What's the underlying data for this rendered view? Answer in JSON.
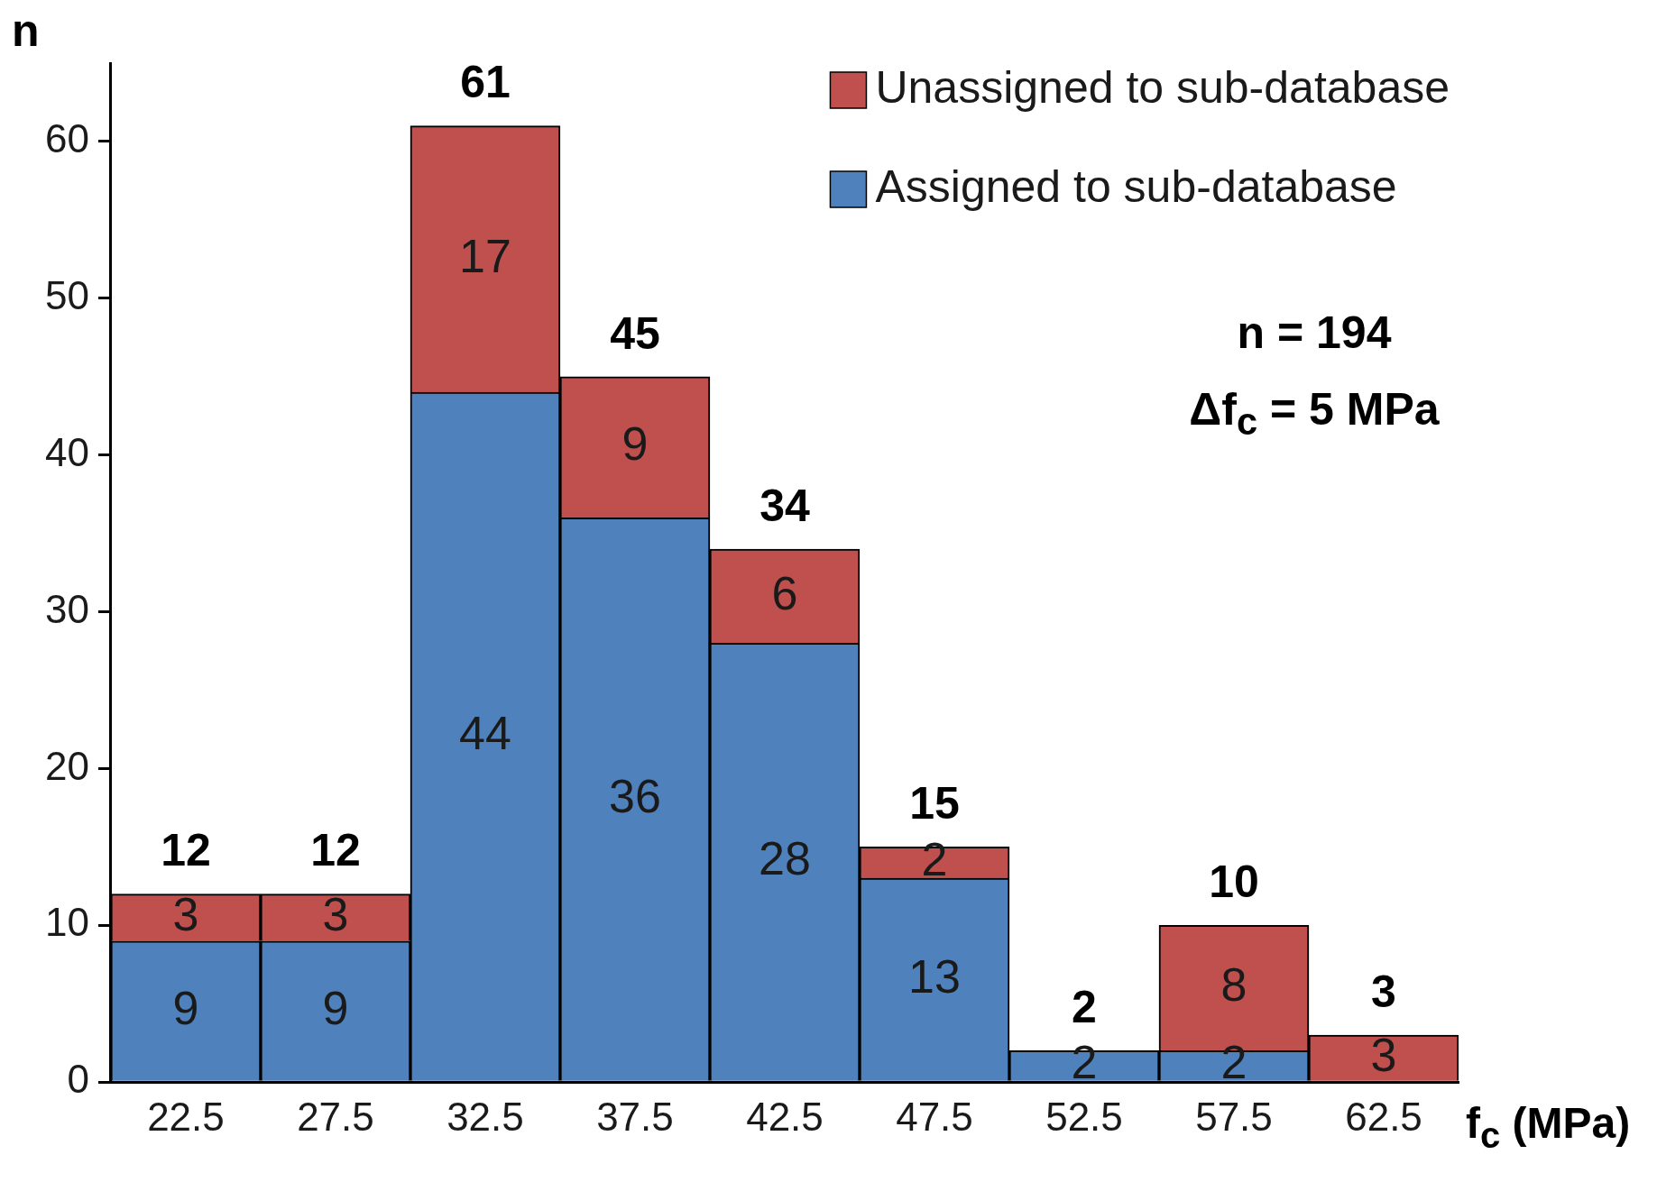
{
  "chart_data": {
    "type": "bar",
    "stacked": true,
    "categories": [
      "22.5",
      "27.5",
      "32.5",
      "37.5",
      "42.5",
      "47.5",
      "52.5",
      "57.5",
      "62.5"
    ],
    "series": [
      {
        "name": "Assigned to sub-database",
        "color": "#4f81bd",
        "values": [
          9,
          9,
          44,
          36,
          28,
          13,
          2,
          2,
          0
        ],
        "value_labels": [
          "9",
          "9",
          "44",
          "36",
          "28",
          "13",
          "2",
          "2",
          null
        ]
      },
      {
        "name": "Unassigned to sub-database",
        "color": "#c0504d",
        "values": [
          3,
          3,
          17,
          9,
          6,
          2,
          0,
          8,
          3
        ],
        "value_labels": [
          "3",
          "3",
          "17",
          "9",
          "6",
          "2",
          null,
          "8",
          "3"
        ]
      }
    ],
    "totals": [
      "12",
      "12",
      "61",
      "45",
      "34",
      "15",
      "2",
      "10",
      "3"
    ],
    "ylabel": "n",
    "xlabel": "f$_{c}$ (MPa)",
    "ylim": [
      0,
      65
    ],
    "yticks": [
      0,
      10,
      20,
      30,
      40,
      50,
      60
    ],
    "grid": false,
    "legend": "top right",
    "annotations": [
      "n = 194",
      "Δf$_{c}$ = 5 MPa"
    ]
  }
}
